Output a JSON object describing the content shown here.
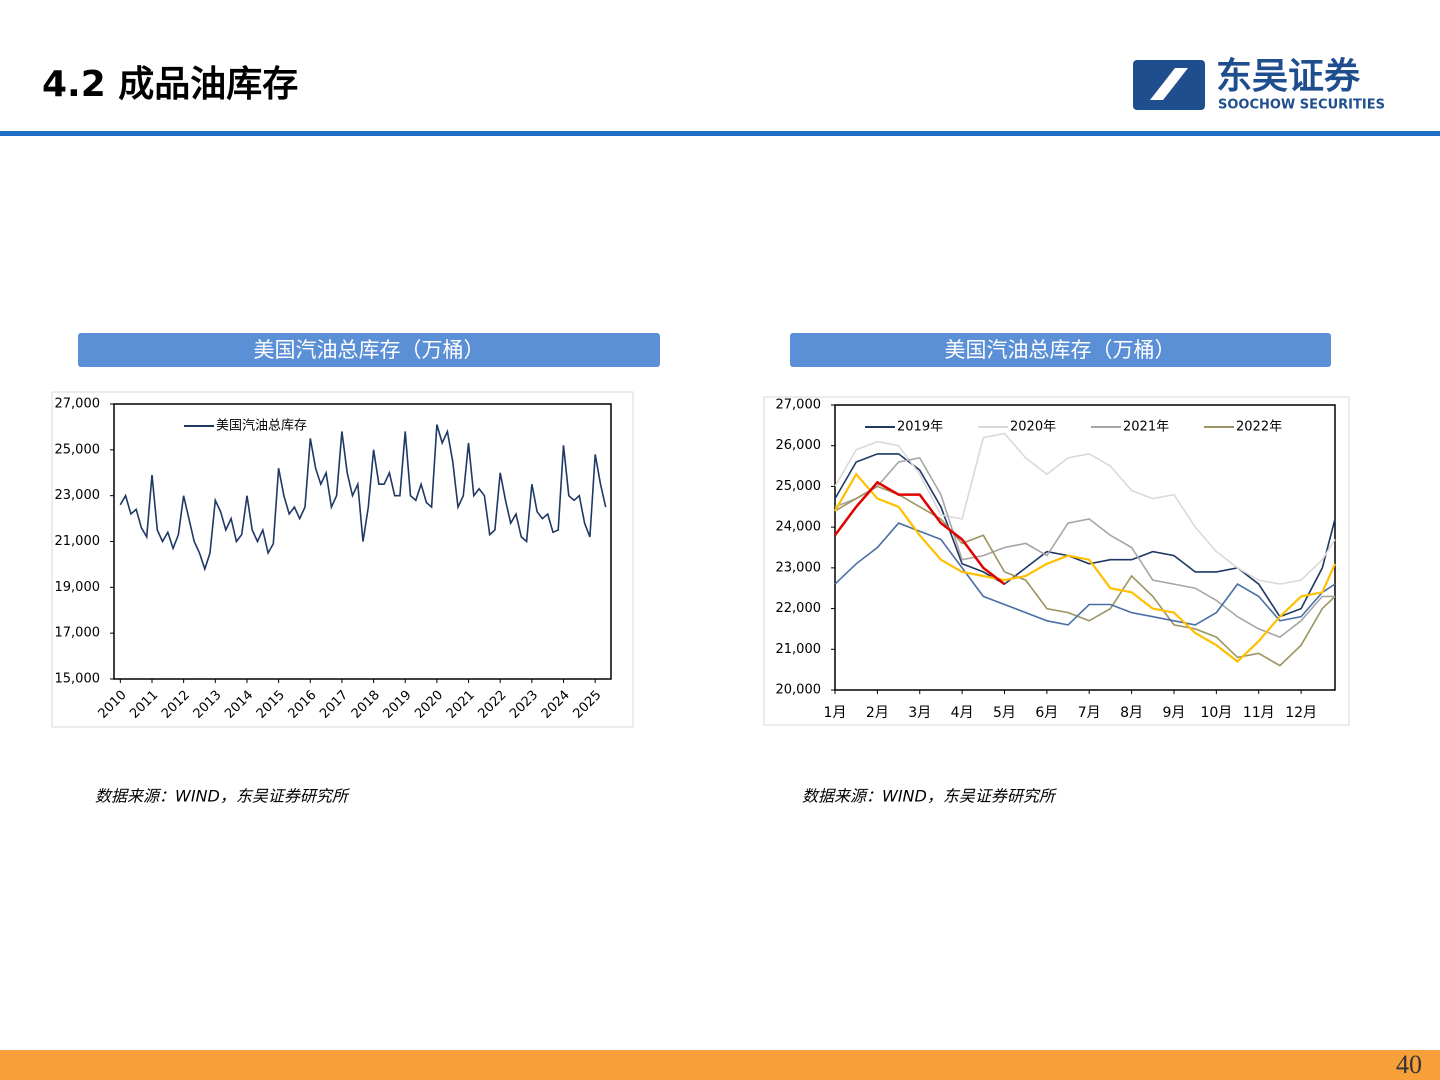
{
  "header": {
    "title": "4.2 成品油库存",
    "logo_cn": "东吴证券",
    "logo_en": "SOOCHOW SECURITIES"
  },
  "page_number": "40",
  "sources": [
    "数据来源：WIND，东吴证券研究所",
    "数据来源：WIND，东吴证券研究所"
  ],
  "chart_data": [
    {
      "type": "line",
      "title": "美国汽油总库存（万桶）",
      "legend": "upper left",
      "grid": false,
      "x": [
        2010,
        2010.167,
        2010.333,
        2010.5,
        2010.667,
        2010.833,
        2011,
        2011.167,
        2011.333,
        2011.5,
        2011.667,
        2011.833,
        2012,
        2012.167,
        2012.333,
        2012.5,
        2012.667,
        2012.833,
        2013,
        2013.167,
        2013.333,
        2013.5,
        2013.667,
        2013.833,
        2014,
        2014.167,
        2014.333,
        2014.5,
        2014.667,
        2014.833,
        2015,
        2015.167,
        2015.333,
        2015.5,
        2015.667,
        2015.833,
        2016,
        2016.167,
        2016.333,
        2016.5,
        2016.667,
        2016.833,
        2017,
        2017.167,
        2017.333,
        2017.5,
        2017.667,
        2017.833,
        2018,
        2018.167,
        2018.333,
        2018.5,
        2018.667,
        2018.833,
        2019,
        2019.167,
        2019.333,
        2019.5,
        2019.667,
        2019.833,
        2020,
        2020.167,
        2020.333,
        2020.5,
        2020.667,
        2020.833,
        2021,
        2021.167,
        2021.333,
        2021.5,
        2021.667,
        2021.833,
        2022,
        2022.167,
        2022.333,
        2022.5,
        2022.667,
        2022.833,
        2023,
        2023.167,
        2023.333,
        2023.5,
        2023.667,
        2023.833,
        2024,
        2024.167,
        2024.333,
        2024.5,
        2024.667,
        2024.833,
        2025,
        2025.167,
        2025.333
      ],
      "series": [
        {
          "name": "美国汽油总库存",
          "color": "#1f3864",
          "values": [
            22600,
            23000,
            22200,
            22400,
            21600,
            21200,
            23900,
            21500,
            21000,
            21400,
            20700,
            21300,
            23000,
            22000,
            21000,
            20500,
            19800,
            20500,
            22800,
            22300,
            21500,
            22000,
            21000,
            21300,
            23000,
            21500,
            21000,
            21500,
            20500,
            20900,
            24200,
            23000,
            22200,
            22500,
            22000,
            22500,
            25500,
            24200,
            23500,
            24000,
            22500,
            23000,
            25800,
            24000,
            23000,
            23500,
            21000,
            22500,
            25000,
            23500,
            23500,
            24000,
            23000,
            23000,
            25800,
            23000,
            22800,
            23500,
            22700,
            22500,
            26100,
            25300,
            25800,
            24500,
            22500,
            23000,
            25300,
            23000,
            23300,
            23000,
            21300,
            21500,
            24000,
            22800,
            21800,
            22200,
            21200,
            21000,
            23500,
            22300,
            22000,
            22200,
            21400,
            21500,
            25200,
            23000,
            22800,
            23000,
            21800,
            21200,
            24800,
            23500,
            22500
          ]
        }
      ],
      "xlim": [
        2009.8,
        2025.5
      ],
      "xticks": [
        2010,
        2011,
        2012,
        2013,
        2014,
        2015,
        2016,
        2017,
        2018,
        2019,
        2020,
        2021,
        2022,
        2023,
        2024,
        2025
      ],
      "ylim": [
        15000,
        27000
      ],
      "yticks": [
        {
          "value": 15000,
          "label": "15,000"
        },
        {
          "value": 17000,
          "label": "17,000"
        },
        {
          "value": 19000,
          "label": "19,000"
        },
        {
          "value": 21000,
          "label": "21,000"
        },
        {
          "value": 23000,
          "label": "23,000"
        },
        {
          "value": 25000,
          "label": "25,000"
        },
        {
          "value": 27000,
          "label": "27,000"
        }
      ]
    },
    {
      "type": "line",
      "title": "美国汽油总库存（万桶）",
      "legend": "top",
      "grid": false,
      "x": [
        1,
        1.5,
        2,
        2.5,
        3,
        3.5,
        4,
        4.5,
        5,
        5.5,
        6,
        6.5,
        7,
        7.5,
        8,
        8.5,
        9,
        9.5,
        10,
        10.5,
        11,
        11.5,
        12,
        12.5,
        12.8
      ],
      "series": [
        {
          "name": "2019年",
          "color": "#1f3864",
          "values": [
            24700,
            25600,
            25800,
            25800,
            25400,
            24500,
            23100,
            22900,
            22600,
            23000,
            23400,
            23300,
            23100,
            23200,
            23200,
            23400,
            23300,
            22900,
            22900,
            23000,
            22600,
            21800,
            22000,
            23000,
            24200
          ]
        },
        {
          "name": "2020年",
          "color": "#d9d9d9",
          "values": [
            25000,
            25900,
            26100,
            26000,
            25300,
            24300,
            24200,
            26200,
            26300,
            25700,
            25300,
            25700,
            25800,
            25500,
            24900,
            24700,
            24800,
            24000,
            23400,
            23000,
            22700,
            22600,
            22700,
            23200,
            23700
          ]
        },
        {
          "name": "2021年",
          "color": "#a6a6a6",
          "values": [
            24500,
            24700,
            25000,
            25600,
            25700,
            24800,
            23200,
            23300,
            23500,
            23600,
            23300,
            24100,
            24200,
            23800,
            23500,
            22700,
            22600,
            22500,
            22200,
            21800,
            21500,
            21300,
            21700,
            22300,
            22300
          ]
        },
        {
          "name": "2022年",
          "color": "#9c9462",
          "values": [
            24400,
            24700,
            25000,
            24800,
            24500,
            24200,
            23600,
            23800,
            22900,
            22700,
            22000,
            21900,
            21700,
            22000,
            22800,
            22300,
            21600,
            21500,
            21300,
            20800,
            20900,
            20600,
            21100,
            22000,
            22300
          ]
        },
        {
          "color": "#4a6fa5",
          "values": [
            22600,
            23100,
            23500,
            24100,
            23900,
            23700,
            23000,
            22300,
            22100,
            21900,
            21700,
            21600,
            22100,
            22100,
            21900,
            21800,
            21700,
            21600,
            21900,
            22600,
            22300,
            21700,
            21800,
            22400,
            22600
          ]
        },
        {
          "color": "#ffc000",
          "values": [
            24400,
            25300,
            24700,
            24500,
            23800,
            23200,
            22900,
            22800,
            22700,
            22800,
            23100,
            23300,
            23200,
            22500,
            22400,
            22000,
            21900,
            21400,
            21100,
            20700,
            21200,
            21800,
            22300,
            22400,
            23100
          ]
        },
        {
          "color": "#e00000",
          "values": [
            23800,
            24500,
            25100,
            24800,
            24800,
            24100,
            23700,
            23000,
            22600,
            null,
            null,
            null,
            null,
            null,
            null,
            null,
            null,
            null,
            null,
            null,
            null,
            null,
            null,
            null,
            null
          ]
        }
      ],
      "xlim": [
        1,
        12.8
      ],
      "xticks": [
        {
          "value": 1,
          "label": "1月"
        },
        {
          "value": 2,
          "label": "2月"
        },
        {
          "value": 3,
          "label": "3月"
        },
        {
          "value": 4,
          "label": "4月"
        },
        {
          "value": 5,
          "label": "5月"
        },
        {
          "value": 6,
          "label": "6月"
        },
        {
          "value": 7,
          "label": "7月"
        },
        {
          "value": 8,
          "label": "8月"
        },
        {
          "value": 9,
          "label": "9月"
        },
        {
          "value": 10,
          "label": "10月"
        },
        {
          "value": 11,
          "label": "11月"
        },
        {
          "value": 12,
          "label": "12月"
        }
      ],
      "ylim": [
        20000,
        27000
      ],
      "yticks": [
        {
          "value": 20000,
          "label": "20,000"
        },
        {
          "value": 21000,
          "label": "21,000"
        },
        {
          "value": 22000,
          "label": "22,000"
        },
        {
          "value": 23000,
          "label": "23,000"
        },
        {
          "value": 24000,
          "label": "24,000"
        },
        {
          "value": 25000,
          "label": "25,000"
        },
        {
          "value": 26000,
          "label": "26,000"
        },
        {
          "value": 27000,
          "label": "27,000"
        }
      ]
    }
  ]
}
